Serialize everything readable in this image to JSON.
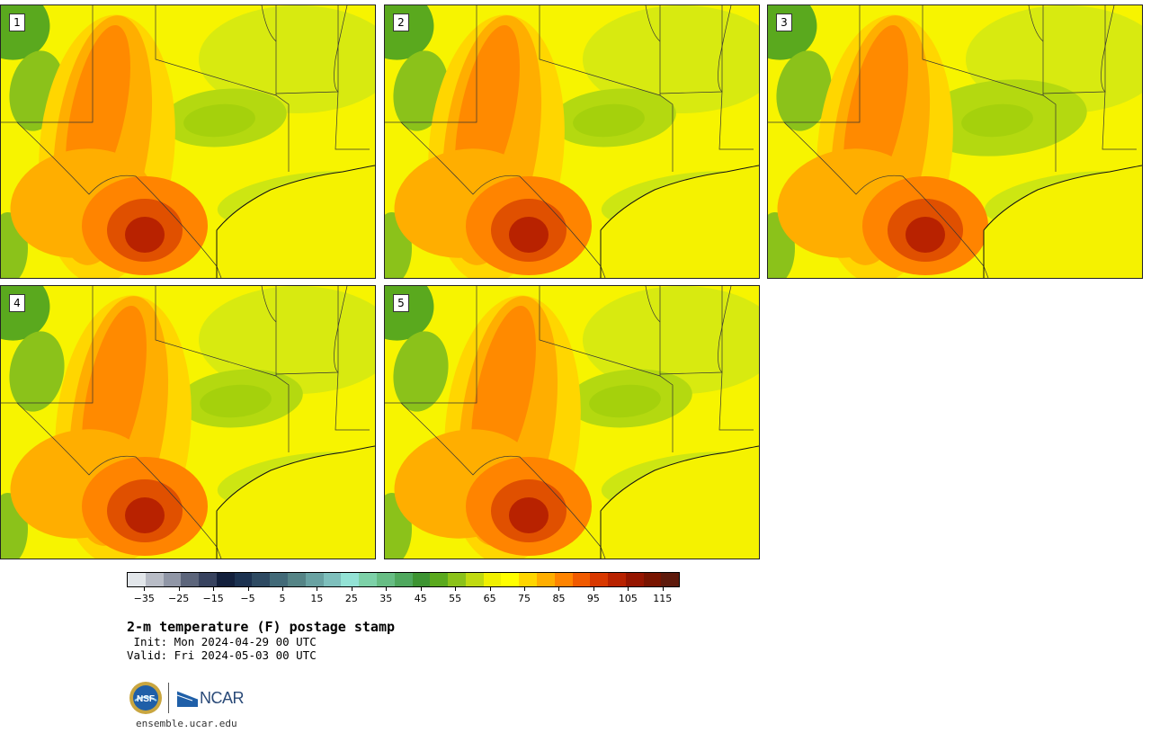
{
  "panels": [
    {
      "label": "1",
      "variant": 1
    },
    {
      "label": "2",
      "variant": 2
    },
    {
      "label": "3",
      "variant": 3
    },
    {
      "label": "4",
      "variant": 4
    },
    {
      "label": "5",
      "variant": 5
    }
  ],
  "colorbar": {
    "colors": [
      "#e2e6ea",
      "#b8bcc6",
      "#9096a6",
      "#5c657b",
      "#38435f",
      "#13203c",
      "#1c3250",
      "#2e4a62",
      "#426a78",
      "#558486",
      "#69a2a2",
      "#7ebfbc",
      "#93e2d5",
      "#7dd1a8",
      "#67bd84",
      "#4fa85e",
      "#3d9432",
      "#5aa91e",
      "#8bc21a",
      "#c0da10",
      "#f0f000",
      "#ffff00",
      "#ffd600",
      "#ffae00",
      "#ff8400",
      "#f05a00",
      "#d83800",
      "#b82200",
      "#951500",
      "#781400",
      "#5e1a0c"
    ],
    "tick_labels": [
      "−35",
      "−25",
      "−15",
      "−5",
      "5",
      "15",
      "25",
      "35",
      "45",
      "55",
      "65",
      "75",
      "85",
      "95",
      "105",
      "115"
    ],
    "min": -40,
    "max": 120
  },
  "title": "2-m temperature (F) postage stamp",
  "init_line": " Init: Mon 2024-04-29 00 UTC",
  "valid_line": "Valid: Fri 2024-05-03 00 UTC",
  "logo": {
    "nsf_text": "NSF",
    "ncar_text": "NCAR"
  },
  "site": "ensemble.ucar.edu"
}
